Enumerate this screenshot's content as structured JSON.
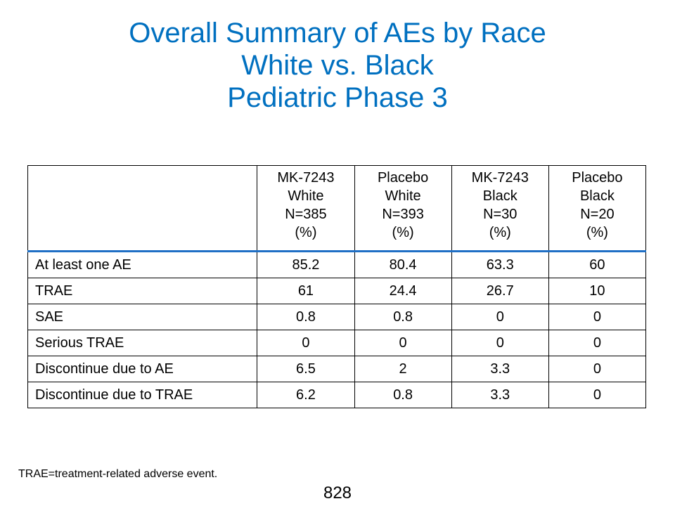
{
  "title": {
    "line1": "Overall Summary of AEs by Race",
    "line2": "White vs. Black",
    "line3": "Pediatric Phase 3"
  },
  "table": {
    "columns": [
      {
        "line1": "MK-7243",
        "line2": "White",
        "line3": "N=385",
        "line4": "(%)"
      },
      {
        "line1": "Placebo",
        "line2": "White",
        "line3": "N=393",
        "line4": "(%)"
      },
      {
        "line1": "MK-7243",
        "line2": "Black",
        "line3": "N=30",
        "line4": "(%)"
      },
      {
        "line1": "Placebo",
        "line2": "Black",
        "line3": "N=20",
        "line4": "(%)"
      }
    ],
    "rows": [
      {
        "label": "At least one AE",
        "values": [
          "85.2",
          "80.4",
          "63.3",
          "60"
        ]
      },
      {
        "label": "TRAE",
        "values": [
          "61",
          "24.4",
          "26.7",
          "10"
        ]
      },
      {
        "label": "SAE",
        "values": [
          "0.8",
          "0.8",
          "0",
          "0"
        ]
      },
      {
        "label": "Serious TRAE",
        "values": [
          "0",
          "0",
          "0",
          "0"
        ]
      },
      {
        "label": "Discontinue due to AE",
        "values": [
          "6.5",
          "2",
          "3.3",
          "0"
        ]
      },
      {
        "label": "Discontinue due to TRAE",
        "values": [
          "6.2",
          "0.8",
          "3.3",
          "0"
        ]
      }
    ]
  },
  "footnote": "TRAE=treatment-related adverse event.",
  "page_number": "828",
  "colors": {
    "title": "#0070c0",
    "header_rule": "#1f6fc5"
  }
}
